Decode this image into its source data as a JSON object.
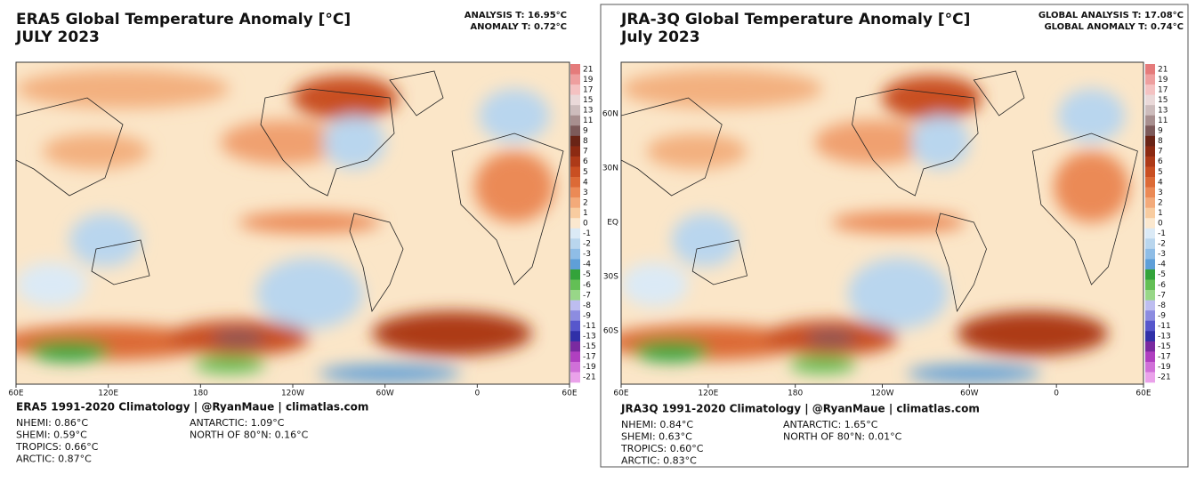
{
  "panels": [
    {
      "title": "ERA5 Global Temperature Anomaly [°C]",
      "subtitle": "JULY 2023",
      "analysis": "ANALYSIS T: 16.95°C",
      "anomaly": "ANOMALY T: 0.72°C",
      "x_labels": [
        "60E",
        "120E",
        "180",
        "120W",
        "60W",
        "0",
        "60E"
      ],
      "y_labels": [],
      "footer": "ERA5 1991-2020 Climatology | @RyanMaue | climatlas.com",
      "stats_left": [
        "NHEMI: 0.86°C",
        "SHEMI: 0.59°C",
        "TROPICS: 0.66°C",
        "ARCTIC: 0.87°C"
      ],
      "stats_right": [
        "ANTARCTIC: 1.09°C",
        "NORTH OF 80°N: 0.16°C"
      ]
    },
    {
      "title": "JRA-3Q Global Temperature Anomaly [°C]",
      "subtitle": "July 2023",
      "analysis": "GLOBAL ANALYSIS T: 17.08°C",
      "anomaly": "GLOBAL ANOMALY T: 0.74°C",
      "x_labels": [
        "60E",
        "120E",
        "180",
        "120W",
        "60W",
        "0",
        "60E"
      ],
      "y_labels": [
        "60N",
        "30N",
        "EQ",
        "30S",
        "60S"
      ],
      "footer": "JRA3Q 1991-2020 Climatology | @RyanMaue | climatlas.com",
      "stats_left": [
        "NHEMI: 0.84°C",
        "SHEMI: 0.63°C",
        "TROPICS: 0.60°C",
        "ARCTIC: 0.83°C"
      ],
      "stats_right": [
        "ANTARCTIC: 1.65°C",
        "NORTH OF 80°N: 0.01°C"
      ]
    }
  ],
  "colorbar": {
    "labels": [
      "21",
      "19",
      "17",
      "15",
      "13",
      "11",
      "9",
      "8",
      "7",
      "6",
      "5",
      "4",
      "3",
      "2",
      "1",
      "0",
      "-1",
      "-2",
      "-3",
      "-4",
      "-5",
      "-6",
      "-7",
      "-8",
      "-9",
      "-11",
      "-13",
      "-15",
      "-17",
      "-19",
      "-21"
    ],
    "colors": [
      "#e57b7b",
      "#ee9f9f",
      "#f4c2c2",
      "#ead9d9",
      "#cdbcbc",
      "#a88f8f",
      "#7d5a5a",
      "#6a2416",
      "#8c2a12",
      "#ad3a18",
      "#c94f22",
      "#dc6a36",
      "#eb8a56",
      "#f3aa7a",
      "#f8cca0",
      "#fbe8cf",
      "#dbeaf6",
      "#b9d6ee",
      "#8fbde6",
      "#5f9fd8",
      "#33a33a",
      "#63bf55",
      "#98d788",
      "#bdbdf0",
      "#8c8ce0",
      "#5757cc",
      "#3030a8",
      "#7a2aa0",
      "#b040c0",
      "#d070d8",
      "#eaa2ea"
    ]
  }
}
